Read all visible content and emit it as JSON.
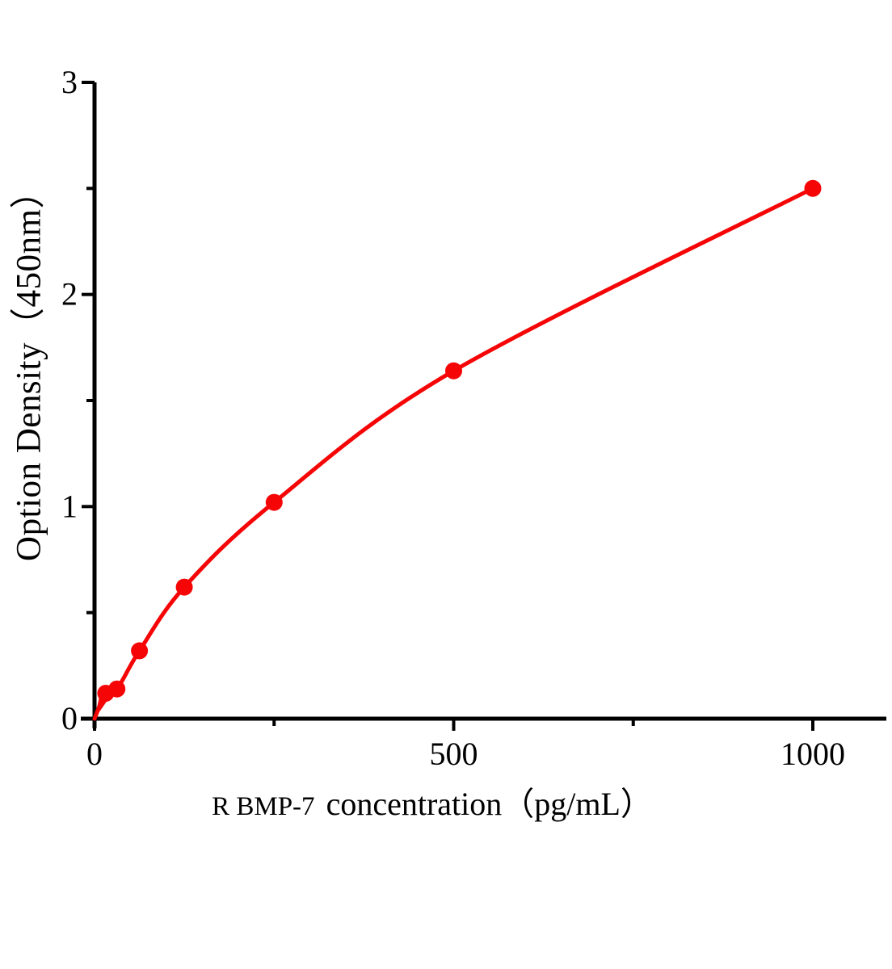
{
  "figure": {
    "background": "#ffffff"
  },
  "chart_data": {
    "type": "line",
    "title": "",
    "xlabel_prefix": "R BMP-7",
    "xlabel_rest": "concentration（pg/mL）",
    "ylabel": "Option Density（450nm）",
    "x": [
      0,
      15.6,
      31.2,
      62.5,
      125,
      250,
      500,
      1000
    ],
    "y": [
      0,
      0.12,
      0.14,
      0.32,
      0.62,
      1.02,
      1.64,
      2.5
    ],
    "xlim": [
      0,
      1100
    ],
    "ylim": [
      0,
      3
    ],
    "x_major_ticks": [
      {
        "v": 0,
        "label": "0"
      },
      {
        "v": 500,
        "label": "500"
      },
      {
        "v": 1000,
        "label": "1000"
      }
    ],
    "x_minor_ticks": [
      250,
      750
    ],
    "y_major_ticks": [
      {
        "v": 0,
        "label": "0"
      },
      {
        "v": 1,
        "label": "1"
      },
      {
        "v": 2,
        "label": "2"
      },
      {
        "v": 3,
        "label": "3"
      }
    ],
    "y_minor_ticks": [
      0.5,
      1.5,
      2.5
    ],
    "grid": false,
    "legend": "none",
    "marker": "filled-circle",
    "colors": {
      "curve": "#f50505",
      "axis": "#000000",
      "text": "#000000"
    }
  }
}
